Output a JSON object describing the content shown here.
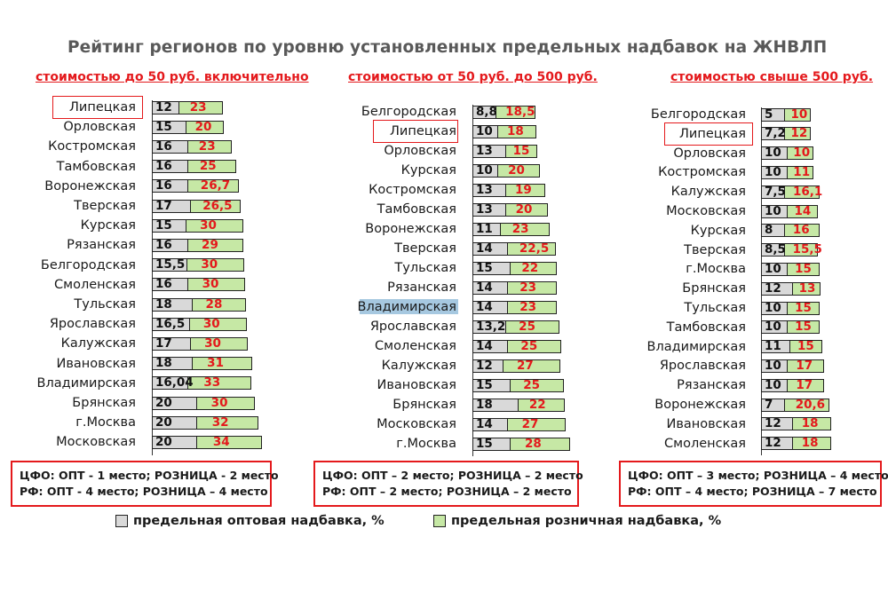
{
  "title": "Рейтинг регионов по уровню установленных предельных надбавок на ЖНВЛП",
  "colors": {
    "wholesale": "#d9d9d9",
    "retail": "#c6e8a5",
    "accent": "#e4191c",
    "highlight_bg": "#a6c8e0"
  },
  "legend": {
    "wholesale": "предельная оптовая надбавка, %",
    "retail": "предельная розничная надбавка, %"
  },
  "chart_data": [
    {
      "type": "bar",
      "title": "стоимостью до 50 руб. включительно",
      "categories": [
        "Липецкая",
        "Орловская",
        "Костромская",
        "Тамбовская",
        "Воронежская",
        "Тверская",
        "Курская",
        "Рязанская",
        "Белгородская",
        "Смоленская",
        "Тульская",
        "Ярославская",
        "Калужская",
        "Ивановская",
        "Владимирская",
        "Брянская",
        "г.Москва",
        "Московская"
      ],
      "series": [
        {
          "name": "предельная оптовая надбавка, %",
          "values": [
            "12",
            "15",
            "16",
            "16",
            "16",
            "17",
            "15",
            "16",
            "15,5",
            "16",
            "18",
            "16,5",
            "17",
            "18",
            "16,04",
            "20",
            "20",
            "20"
          ]
        },
        {
          "name": "предельная розничная надбавка, %",
          "values": [
            "23",
            "20",
            "23",
            "25",
            "26,7",
            "26,5",
            "30",
            "29",
            "30",
            "30",
            "28",
            "30",
            "30",
            "31",
            "33",
            "30",
            "32",
            "34"
          ]
        }
      ],
      "highlight_box": [
        "Липецкая"
      ],
      "highlight_bg": [],
      "summary": [
        "ЦФО: ОПТ - 1 место; РОЗНИЦА - 2 место",
        "РФ:    ОПТ - 4 место; РОЗНИЦА – 4 место"
      ]
    },
    {
      "type": "bar",
      "title": "стоимостью от 50 руб. до  500 руб.",
      "categories": [
        "Белгородская",
        "Липецкая",
        "Орловская",
        "Курская",
        "Костромская",
        "Тамбовская",
        "Воронежская",
        "Тверская",
        "Тульская",
        "Рязанская",
        "Владимирская",
        "Ярославская",
        "Смоленская",
        "Калужская",
        "Ивановская",
        "Брянская",
        "Московская",
        "г.Москва"
      ],
      "series": [
        {
          "name": "предельная оптовая надбавка, %",
          "values": [
            "8,8",
            "10",
            "13",
            "10",
            "13",
            "13",
            "11",
            "14",
            "15",
            "14",
            "14",
            "13,2",
            "14",
            "12",
            "15",
            "18",
            "14",
            "15"
          ]
        },
        {
          "name": "предельная розничная надбавка, %",
          "values": [
            "18,5",
            "18",
            "15",
            "20",
            "19",
            "20",
            "23",
            "22,5",
            "22",
            "23",
            "23",
            "25",
            "25",
            "27",
            "25",
            "22",
            "27",
            "28"
          ]
        }
      ],
      "highlight_box": [
        "Липецкая"
      ],
      "highlight_bg": [
        "Владимирская"
      ],
      "summary": [
        "ЦФО: ОПТ – 2 место; РОЗНИЦА – 2 место",
        "РФ:    ОПТ – 2 место; РОЗНИЦА – 2 место"
      ]
    },
    {
      "type": "bar",
      "title": "стоимостью свыше 500 руб.",
      "categories": [
        "Белгородская",
        "Липецкая",
        "Орловская",
        "Костромская",
        "Калужская",
        "Московская",
        "Курская",
        "Тверская",
        "г.Москва",
        "Брянская",
        "Тульская",
        "Тамбовская",
        "Владимирская",
        "Ярославская",
        "Рязанская",
        "Воронежская",
        "Ивановская",
        "Смоленская"
      ],
      "series": [
        {
          "name": "предельная оптовая надбавка, %",
          "values": [
            "5",
            "7,2",
            "10",
            "10",
            "7,5",
            "10",
            "8",
            "8,5",
            "10",
            "12",
            "10",
            "10",
            "11",
            "10",
            "10",
            "7",
            "12",
            "12"
          ]
        },
        {
          "name": "предельная розничная надбавка, %",
          "values": [
            "10",
            "12",
            "10",
            "11",
            "16,1",
            "14",
            "16",
            "15,5",
            "15",
            "13",
            "15",
            "15",
            "15",
            "17",
            "17",
            "20,6",
            "18",
            "18"
          ]
        }
      ],
      "highlight_box": [
        "Липецкая"
      ],
      "highlight_bg": [],
      "summary": [
        "ЦФО: ОПТ – 3 место; РОЗНИЦА – 4 место",
        "РФ:    ОПТ – 4 место; РОЗНИЦА – 7 место"
      ]
    }
  ]
}
